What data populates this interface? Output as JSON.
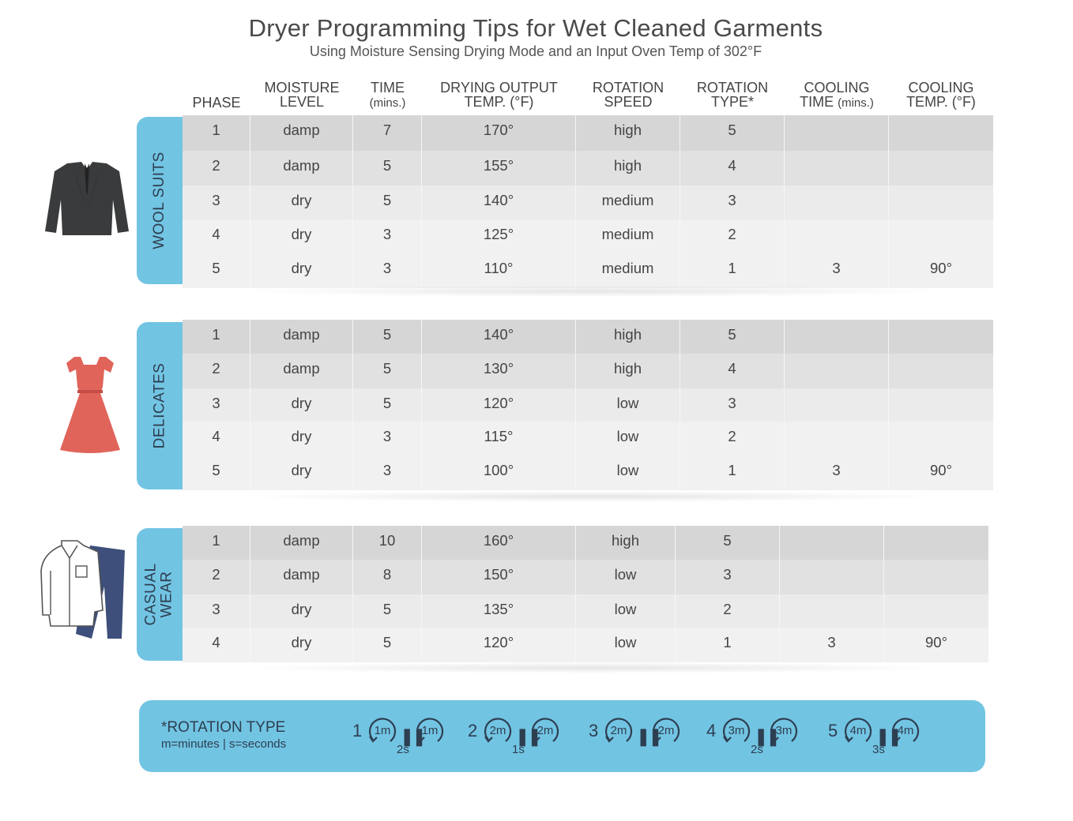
{
  "title": "Dryer Programming Tips for Wet Cleaned Garments",
  "subtitle": "Using Moisture Sensing Drying Mode and an Input Oven Temp of 302°F",
  "headers": {
    "phase": "PHASE",
    "moisture_1": "MOISTURE",
    "moisture_2": "LEVEL",
    "time_1": "TIME",
    "time_2": "(mins.)",
    "drying_1": "DRYING OUTPUT",
    "drying_2": "TEMP. (°F)",
    "rot_speed_1": "ROTATION",
    "rot_speed_2": "SPEED",
    "rot_type_1": "ROTATION",
    "rot_type_2": "TYPE*",
    "cool_time_1": "COOLING",
    "cool_time_2a": "TIME",
    "cool_time_2b": "(mins.)",
    "cool_temp_1": "COOLING",
    "cool_temp_2": "TEMP. (°F)"
  },
  "sections": {
    "wool": {
      "label": "WOOL SUITS",
      "rows": [
        [
          "1",
          "damp",
          "7",
          "170°",
          "high",
          "5",
          "",
          ""
        ],
        [
          "2",
          "damp",
          "5",
          "155°",
          "high",
          "4",
          "",
          ""
        ],
        [
          "3",
          "dry",
          "5",
          "140°",
          "medium",
          "3",
          "",
          ""
        ],
        [
          "4",
          "dry",
          "3",
          "125°",
          "medium",
          "2",
          "",
          ""
        ],
        [
          "5",
          "dry",
          "3",
          "110°",
          "medium",
          "1",
          "3",
          "90°"
        ]
      ]
    },
    "delicates": {
      "label": "DELICATES",
      "rows": [
        [
          "1",
          "damp",
          "5",
          "140°",
          "high",
          "5",
          "",
          ""
        ],
        [
          "2",
          "damp",
          "5",
          "130°",
          "high",
          "4",
          "",
          ""
        ],
        [
          "3",
          "dry",
          "5",
          "120°",
          "low",
          "3",
          "",
          ""
        ],
        [
          "4",
          "dry",
          "3",
          "115°",
          "low",
          "2",
          "",
          ""
        ],
        [
          "5",
          "dry",
          "3",
          "100°",
          "low",
          "1",
          "3",
          "90°"
        ]
      ]
    },
    "casual": {
      "label_1": "CASUAL",
      "label_2": "WEAR",
      "rows": [
        [
          "1",
          "damp",
          "10",
          "160°",
          "high",
          "5",
          "",
          ""
        ],
        [
          "2",
          "damp",
          "8",
          "150°",
          "low",
          "3",
          "",
          ""
        ],
        [
          "3",
          "dry",
          "5",
          "135°",
          "low",
          "2",
          "",
          ""
        ],
        [
          "4",
          "dry",
          "5",
          "120°",
          "low",
          "1",
          "3",
          "90°"
        ]
      ]
    }
  },
  "legend": {
    "title": "*ROTATION TYPE",
    "subtitle": "m=minutes | s=seconds",
    "types": [
      {
        "num": "1",
        "a": "1m",
        "b": "1m",
        "gap": "2s"
      },
      {
        "num": "2",
        "a": "2m",
        "b": "2m",
        "gap": "1s"
      },
      {
        "num": "3",
        "a": "2m",
        "b": "2m",
        "gap": ""
      },
      {
        "num": "4",
        "a": "3m",
        "b": "3m",
        "gap": "2s"
      },
      {
        "num": "5",
        "a": "4m",
        "b": "4m",
        "gap": "3s"
      }
    ]
  },
  "colors": {
    "accent": "#72c4e3",
    "label_text": "#2d3e50",
    "suit": "#3a3b3c",
    "dress": "#e0645a",
    "jeans": "#3d4f7a"
  }
}
